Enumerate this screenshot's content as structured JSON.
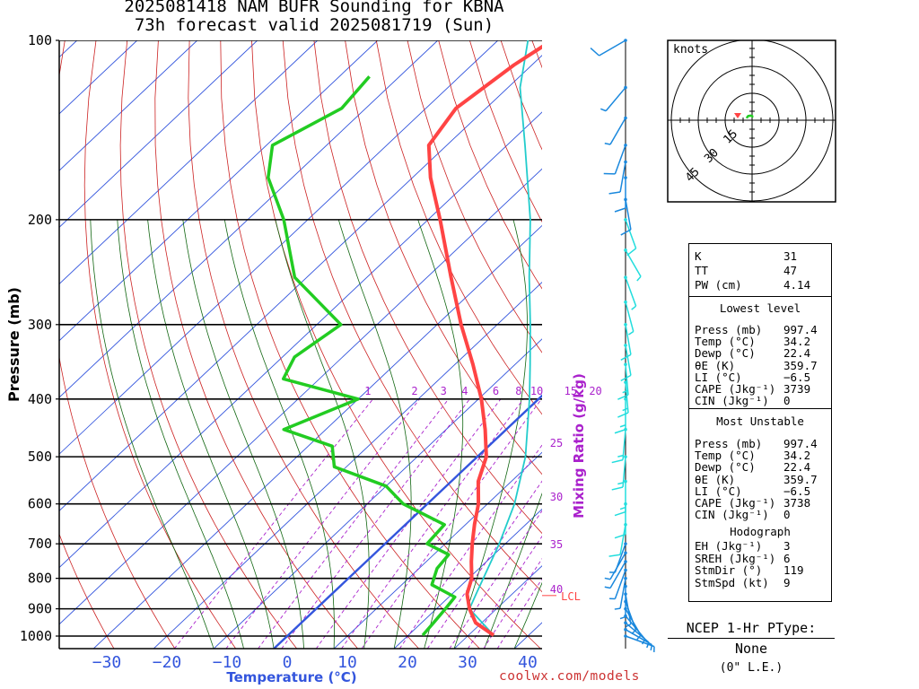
{
  "title": {
    "line1": "2025081418 NAM BUFR Sounding for KBNA",
    "line2": "73h forecast valid 2025081719 (Sun)"
  },
  "axes": {
    "ylabel": "Pressure (mb)",
    "xlabel": "Temperature (°C)",
    "mixing_label": "Mixing Ratio (g/kg)",
    "pressure_ticks": [
      "100",
      "200",
      "300",
      "400",
      "500",
      "600",
      "700",
      "800",
      "900",
      "1000"
    ],
    "temp_ticks": [
      "−30",
      "−20",
      "−10",
      "0",
      "10",
      "20",
      "30",
      "40"
    ],
    "mixing_ticks_top": [
      "1",
      "2",
      "3",
      "4",
      "6",
      "8",
      "10",
      "15",
      "20"
    ],
    "mixing_ticks_right": [
      "25",
      "30",
      "35",
      "40"
    ],
    "lcl_label": "LCL"
  },
  "colors": {
    "temperature": "#ff4444",
    "dewpoint": "#22cc22",
    "parcel": "#22cccc",
    "isotherm": "#3355dd",
    "dry_adiabat": "#cc2222",
    "moist_adiabat": "#116611",
    "mixing_ratio": "#aa22cc",
    "wind_upper": "#1a88dd",
    "wind_mid": "#22dddd"
  },
  "hodograph": {
    "units_label": "knots",
    "ring_labels": [
      "15",
      "30",
      "45"
    ]
  },
  "stats": {
    "k": {
      "label": "K",
      "value": "31"
    },
    "tt": {
      "label": "TT",
      "value": "47"
    },
    "pw": {
      "label": "PW (cm)",
      "value": "4.14"
    },
    "lowest_header": "Lowest level",
    "lowest": [
      {
        "label": "Press (mb)",
        "value": "997.4"
      },
      {
        "label": "Temp (°C)",
        "value": "34.2"
      },
      {
        "label": "Dewp (°C)",
        "value": "22.4"
      },
      {
        "label": "θE (K)",
        "value": "359.7"
      },
      {
        "label": "LI (°C)",
        "value": "−6.5"
      },
      {
        "label": "CAPE (Jkg⁻¹)",
        "value": "3739"
      },
      {
        "label": "CIN (Jkg⁻¹)",
        "value": "0"
      }
    ],
    "mu_header": "Most Unstable",
    "mu": [
      {
        "label": "Press (mb)",
        "value": "997.4"
      },
      {
        "label": "Temp (°C)",
        "value": "34.2"
      },
      {
        "label": "Dewp (°C)",
        "value": "22.4"
      },
      {
        "label": "θE (K)",
        "value": "359.7"
      },
      {
        "label": "LI (°C)",
        "value": "−6.5"
      },
      {
        "label": "CAPE (Jkg⁻¹)",
        "value": "3738"
      },
      {
        "label": "CIN (Jkg⁻¹)",
        "value": "0"
      }
    ],
    "hodo_header": "Hodograph",
    "hodo": [
      {
        "label": "EH (Jkg⁻¹)",
        "value": "3"
      },
      {
        "label": "SREH (Jkg⁻¹)",
        "value": "6"
      },
      {
        "label": "StmDir (°)",
        "value": "119"
      },
      {
        "label": "StmSpd (kt)",
        "value": "9"
      }
    ]
  },
  "ptype": {
    "title": "NCEP 1-Hr PType:",
    "value": "None",
    "liquid_equiv": "(0\" L.E.)"
  },
  "credit": "coolwx.com/models",
  "chart_data": {
    "type": "line",
    "title": "2025081418 NAM BUFR Sounding for KBNA",
    "subtitle": "73h forecast valid 2025081719 (Sun)",
    "xlabel": "Temperature (°C)",
    "ylabel": "Pressure (mb)",
    "xlim": [
      -40,
      42
    ],
    "ylim": [
      1050,
      100
    ],
    "y_scale": "log",
    "grid": true,
    "series": [
      {
        "name": "Temperature",
        "points": [
          {
            "p": 997,
            "t": 34.2
          },
          {
            "p": 950,
            "t": 29
          },
          {
            "p": 900,
            "t": 25.5
          },
          {
            "p": 850,
            "t": 22.5
          },
          {
            "p": 800,
            "t": 20.5
          },
          {
            "p": 750,
            "t": 17.5
          },
          {
            "p": 700,
            "t": 14.5
          },
          {
            "p": 650,
            "t": 11.5
          },
          {
            "p": 600,
            "t": 8.5
          },
          {
            "p": 550,
            "t": 4.5
          },
          {
            "p": 500,
            "t": 1.5
          },
          {
            "p": 450,
            "t": -3.5
          },
          {
            "p": 400,
            "t": -9.5
          },
          {
            "p": 350,
            "t": -17
          },
          {
            "p": 300,
            "t": -26
          },
          {
            "p": 250,
            "t": -36
          },
          {
            "p": 200,
            "t": -48
          },
          {
            "p": 170,
            "t": -57
          },
          {
            "p": 150,
            "t": -63
          },
          {
            "p": 130,
            "t": -65
          },
          {
            "p": 110,
            "t": -63
          },
          {
            "p": 100,
            "t": -61
          }
        ]
      },
      {
        "name": "Dewpoint",
        "points": [
          {
            "p": 997,
            "t": 22.4
          },
          {
            "p": 950,
            "t": 22
          },
          {
            "p": 900,
            "t": 21.5
          },
          {
            "p": 860,
            "t": 21
          },
          {
            "p": 820,
            "t": 15
          },
          {
            "p": 770,
            "t": 13
          },
          {
            "p": 730,
            "t": 12.5
          },
          {
            "p": 700,
            "t": 7
          },
          {
            "p": 650,
            "t": 6.5
          },
          {
            "p": 600,
            "t": -4
          },
          {
            "p": 560,
            "t": -10
          },
          {
            "p": 520,
            "t": -22
          },
          {
            "p": 480,
            "t": -26
          },
          {
            "p": 450,
            "t": -37
          },
          {
            "p": 400,
            "t": -30
          },
          {
            "p": 370,
            "t": -46
          },
          {
            "p": 340,
            "t": -48
          },
          {
            "p": 300,
            "t": -46
          },
          {
            "p": 250,
            "t": -62
          },
          {
            "p": 200,
            "t": -74
          },
          {
            "p": 170,
            "t": -84
          },
          {
            "p": 150,
            "t": -89
          },
          {
            "p": 130,
            "t": -84
          },
          {
            "p": 115,
            "t": -85
          }
        ]
      },
      {
        "name": "Parcel",
        "points": [
          {
            "p": 997,
            "t": 34.2
          },
          {
            "p": 900,
            "t": 25.5
          },
          {
            "p": 850,
            "t": 24
          },
          {
            "p": 700,
            "t": 19
          },
          {
            "p": 600,
            "t": 14.5
          },
          {
            "p": 500,
            "t": 8
          },
          {
            "p": 400,
            "t": -1.5
          },
          {
            "p": 350,
            "t": -7.5
          },
          {
            "p": 300,
            "t": -14.5
          },
          {
            "p": 250,
            "t": -23
          },
          {
            "p": 200,
            "t": -33
          },
          {
            "p": 150,
            "t": -47
          },
          {
            "p": 120,
            "t": -58
          },
          {
            "p": 100,
            "t": -65
          }
        ]
      }
    ],
    "lcl_pressure": 855,
    "winds": [
      {
        "p": 1000,
        "dir": 110,
        "kt": 8
      },
      {
        "p": 975,
        "dir": 120,
        "kt": 8
      },
      {
        "p": 950,
        "dir": 130,
        "kt": 8
      },
      {
        "p": 925,
        "dir": 140,
        "kt": 8
      },
      {
        "p": 900,
        "dir": 150,
        "kt": 7
      },
      {
        "p": 875,
        "dir": 160,
        "kt": 7
      },
      {
        "p": 850,
        "dir": 170,
        "kt": 6
      },
      {
        "p": 825,
        "dir": 180,
        "kt": 6
      },
      {
        "p": 800,
        "dir": 190,
        "kt": 5
      },
      {
        "p": 775,
        "dir": 200,
        "kt": 5
      },
      {
        "p": 750,
        "dir": 210,
        "kt": 5
      },
      {
        "p": 725,
        "dir": 210,
        "kt": 6
      },
      {
        "p": 700,
        "dir": 200,
        "kt": 8
      },
      {
        "p": 650,
        "dir": 190,
        "kt": 12
      },
      {
        "p": 600,
        "dir": 180,
        "kt": 14
      },
      {
        "p": 550,
        "dir": 180,
        "kt": 15
      },
      {
        "p": 500,
        "dir": 185,
        "kt": 15
      },
      {
        "p": 450,
        "dir": 185,
        "kt": 15
      },
      {
        "p": 400,
        "dir": 180,
        "kt": 15
      },
      {
        "p": 375,
        "dir": 175,
        "kt": 15
      },
      {
        "p": 350,
        "dir": 175,
        "kt": 15
      },
      {
        "p": 325,
        "dir": 170,
        "kt": 12
      },
      {
        "p": 300,
        "dir": 170,
        "kt": 10
      },
      {
        "p": 275,
        "dir": 165,
        "kt": 8
      },
      {
        "p": 250,
        "dir": 160,
        "kt": 6
      },
      {
        "p": 225,
        "dir": 150,
        "kt": 5
      },
      {
        "p": 200,
        "dir": 160,
        "kt": 12
      },
      {
        "p": 185,
        "dir": 170,
        "kt": 12
      },
      {
        "p": 170,
        "dir": 180,
        "kt": 12
      },
      {
        "p": 160,
        "dir": 190,
        "kt": 10
      },
      {
        "p": 150,
        "dir": 200,
        "kt": 10
      },
      {
        "p": 135,
        "dir": 210,
        "kt": 8
      },
      {
        "p": 120,
        "dir": 220,
        "kt": 5
      },
      {
        "p": 100,
        "dir": 240,
        "kt": 10
      }
    ]
  }
}
